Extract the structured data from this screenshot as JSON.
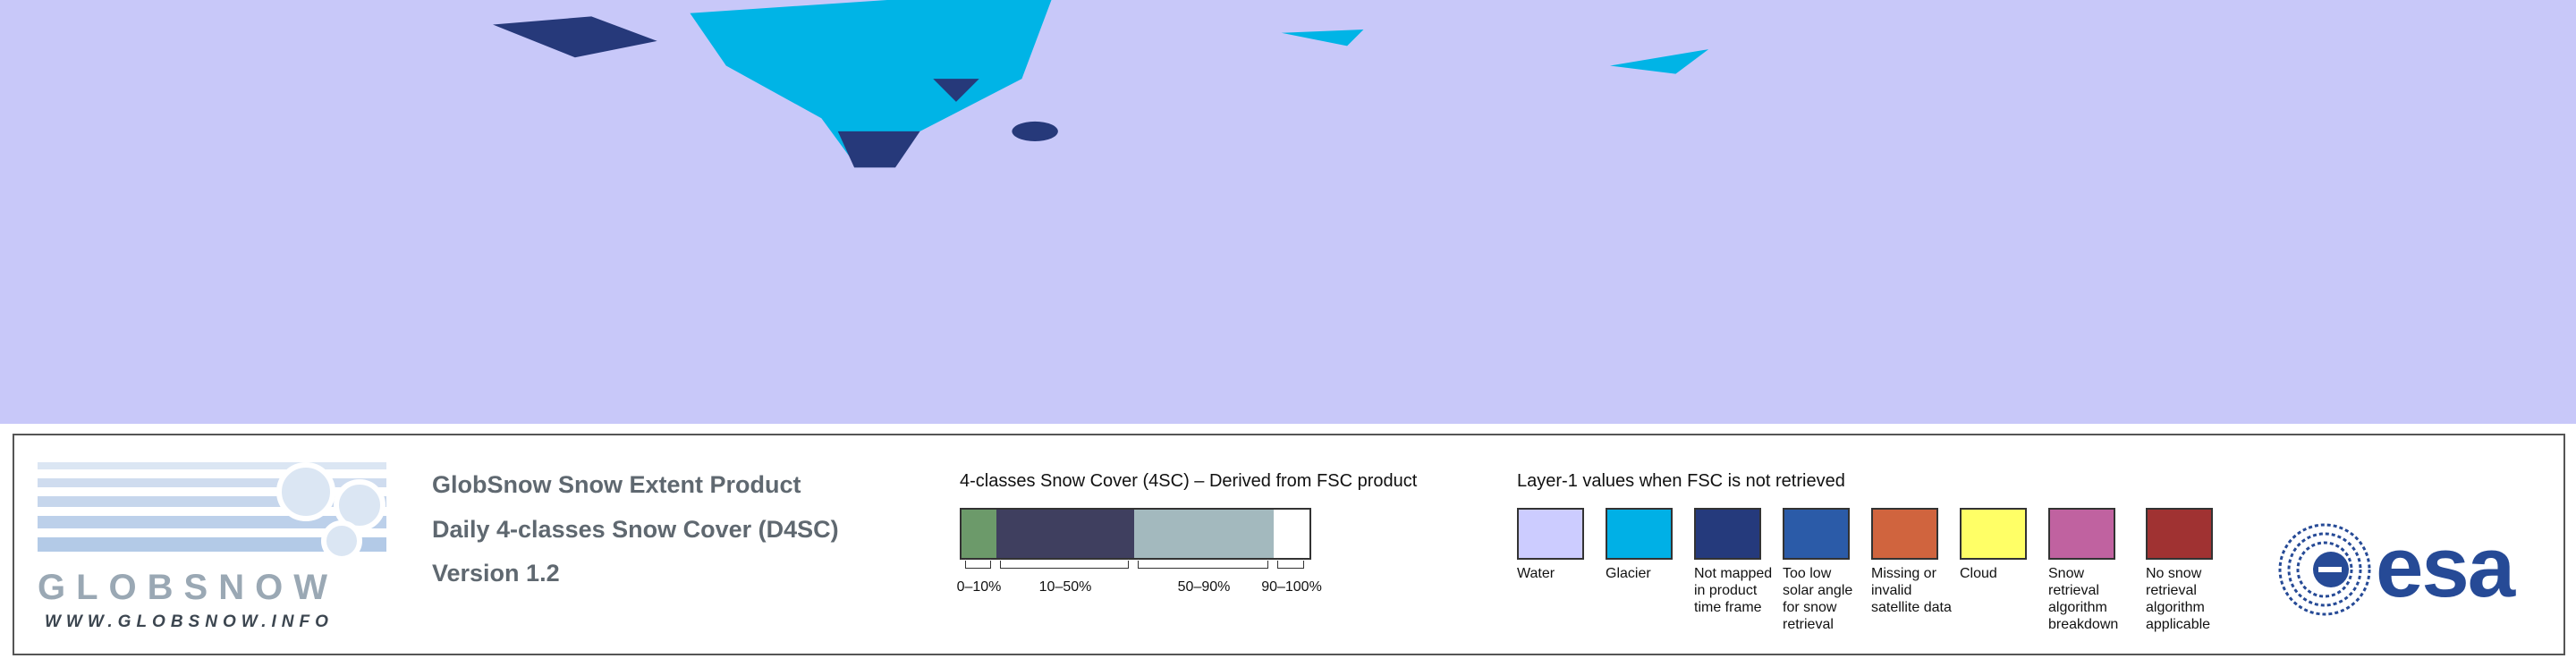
{
  "logo": {
    "wordmark": "GLOBSNOW",
    "url": "WWW.GLOBSNOW.INFO"
  },
  "product": {
    "title": "GlobSnow Snow Extent Product",
    "subtitle": "Daily 4-classes Snow Cover (D4SC)",
    "version": "Version 1.2"
  },
  "fsc_legend": {
    "title": "4-classes Snow Cover (4SC) – Derived from FSC product",
    "classes": [
      {
        "label": "0–10%",
        "color": "#6c9a6a"
      },
      {
        "label": "10–50%",
        "color": "#3f3f5f"
      },
      {
        "label": "50–90%",
        "color": "#a3b9be"
      },
      {
        "label": "90–100%",
        "color": "#ffffff"
      }
    ]
  },
  "layer1_legend": {
    "title": "Layer-1 values when FSC is not retrieved",
    "items": [
      {
        "label": "Water",
        "color": "#ccccff"
      },
      {
        "label": "Glacier",
        "color": "#00b0e6"
      },
      {
        "label": "Not mapped in product time frame",
        "color": "#253a7c"
      },
      {
        "label": "Too low solar angle for snow retrieval",
        "color": "#2b5ba8"
      },
      {
        "label": "Missing or invalid satellite data",
        "color": "#d0643e"
      },
      {
        "label": "Cloud",
        "color": "#ffff66"
      },
      {
        "label": "Snow retrieval algorithm breakdown",
        "color": "#c062a0"
      },
      {
        "label": "No snow retrieval algorithm applicable",
        "color": "#a03232"
      }
    ]
  },
  "esa_logo": "esa"
}
